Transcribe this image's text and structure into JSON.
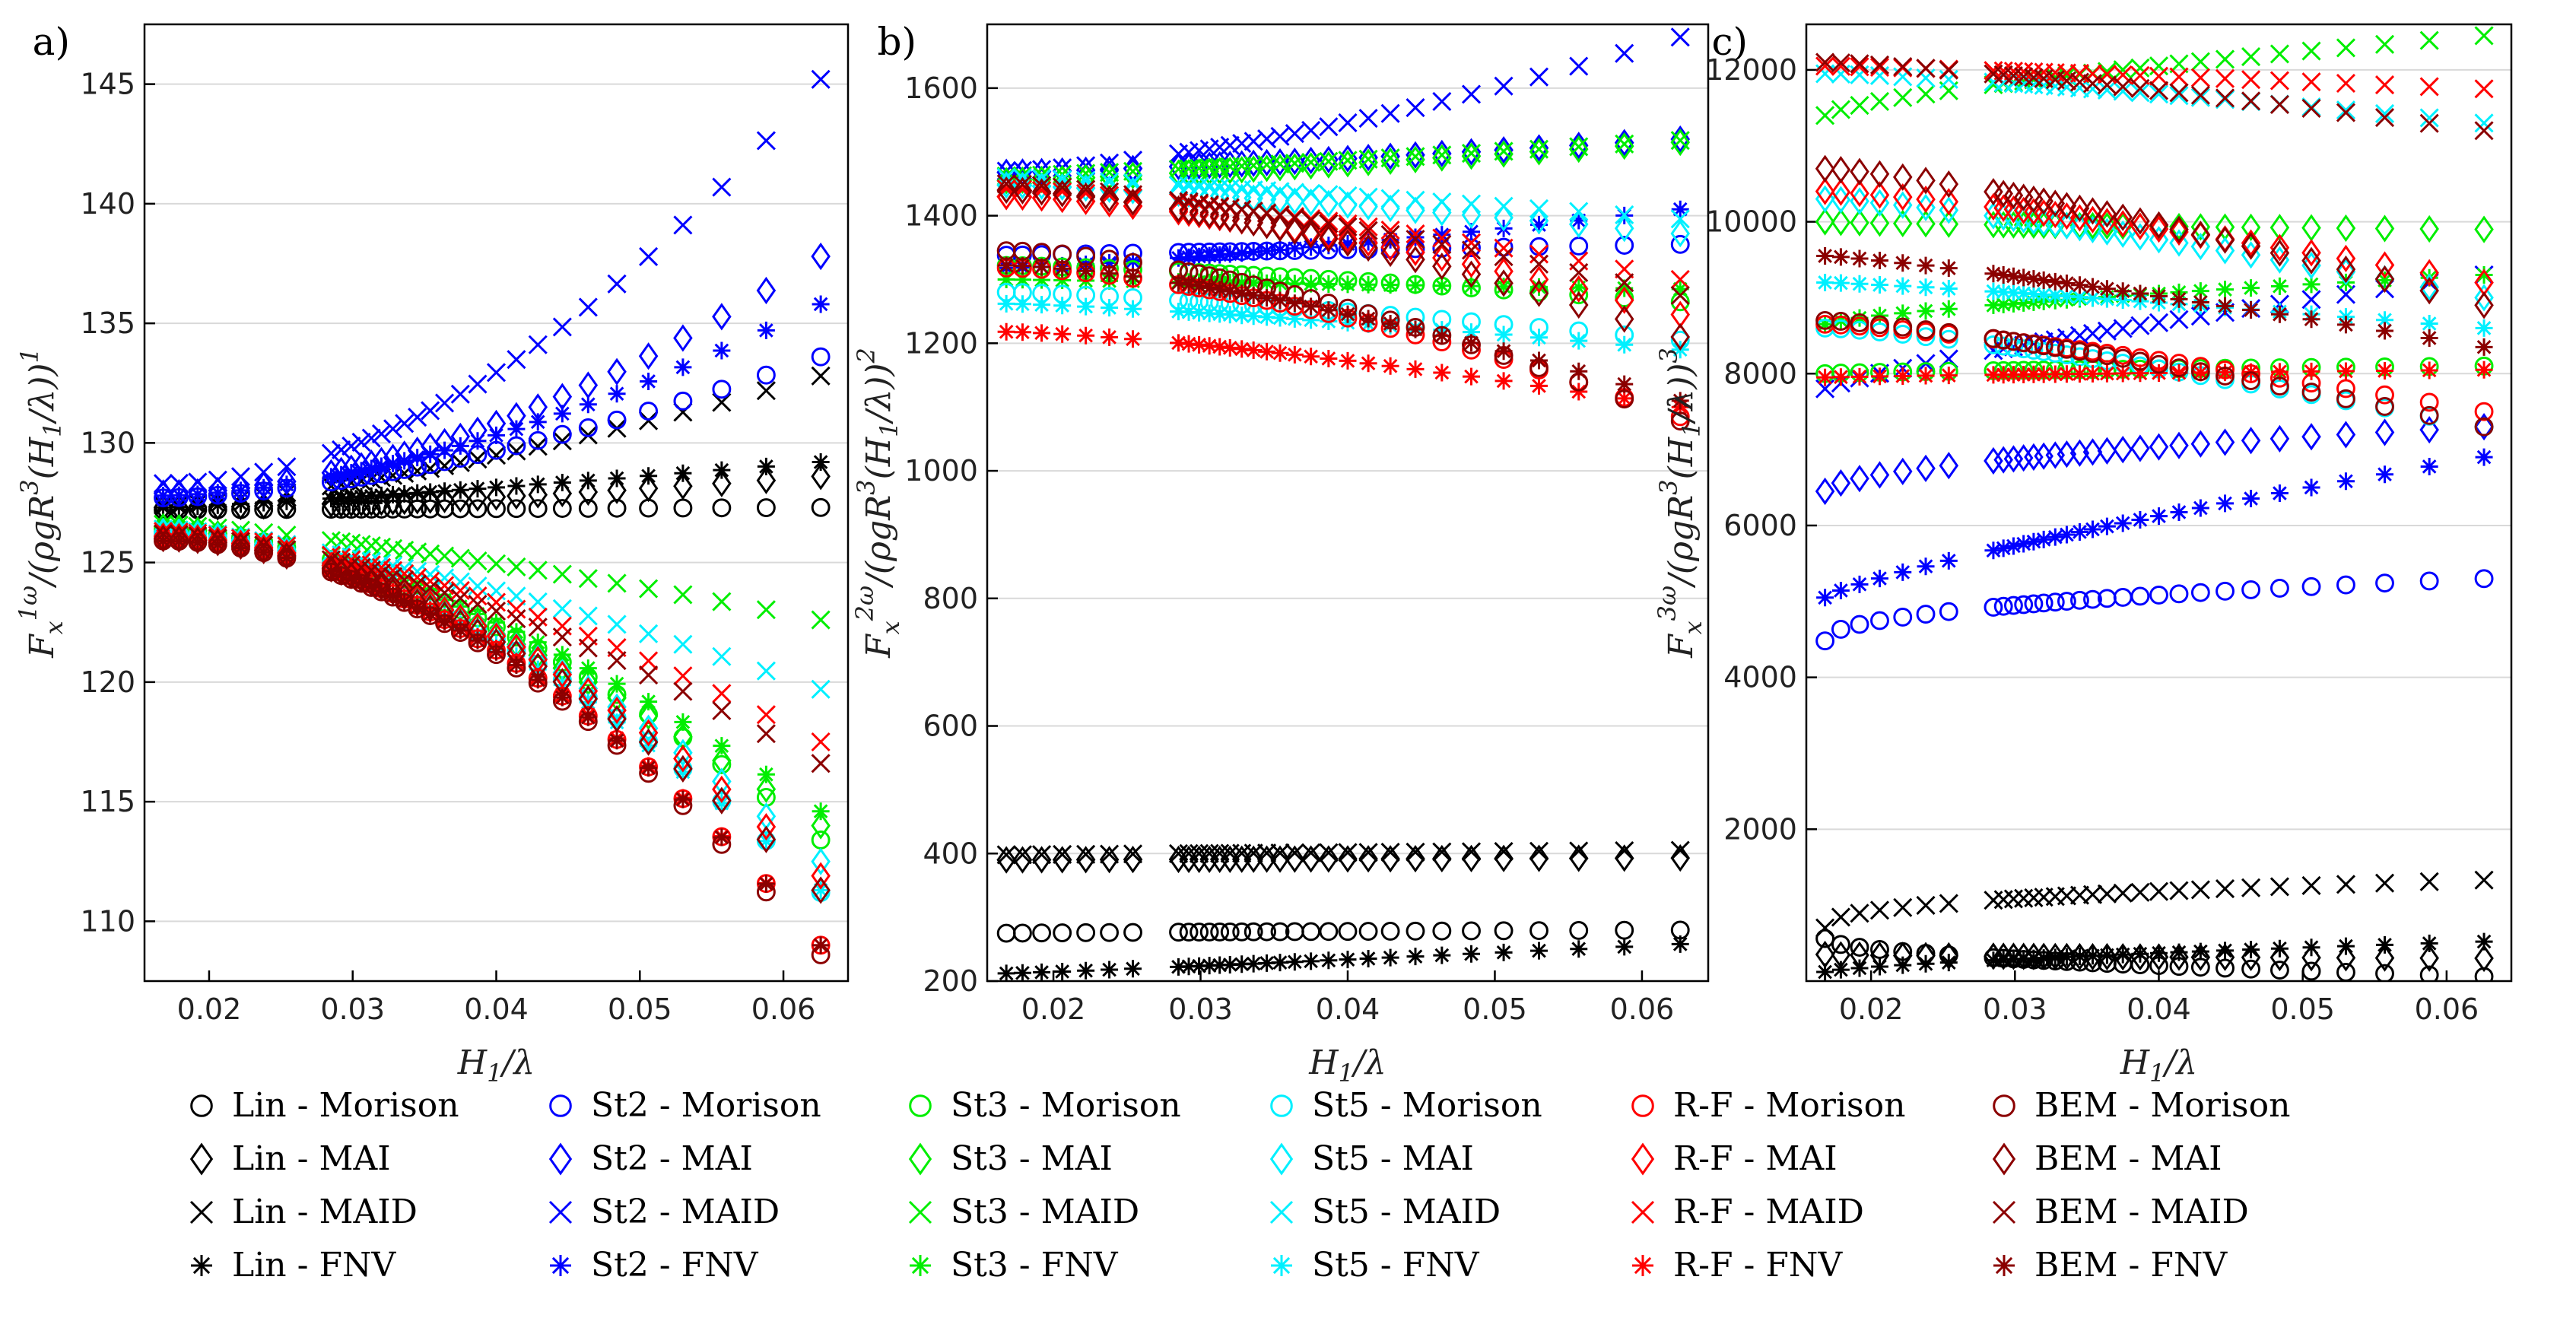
{
  "chart_data": [
    {
      "panel": "a)",
      "type": "scatter",
      "ylabel": "F_x^{1ω}/(ρgR^3(H_1/λ)^1)",
      "xlabel": "H_1/λ",
      "xlim": [
        0.0155,
        0.0645
      ],
      "ylim": [
        107.5,
        147.5
      ],
      "xticks": [
        0.02,
        0.03,
        0.04,
        0.05,
        0.06
      ],
      "xtick_labels": [
        "0.02",
        "0.03",
        "0.04",
        "0.05",
        "0.06"
      ],
      "yticks": [
        110,
        115,
        120,
        125,
        130,
        135,
        140,
        145
      ],
      "ytick_labels": [
        "110",
        "115",
        "120",
        "125",
        "130",
        "135",
        "140",
        "145"
      ],
      "series": [
        {
          "model": "Lin",
          "method": "Morison",
          "start": 127.2,
          "end": 127.3,
          "curve": 1.0
        },
        {
          "model": "Lin",
          "method": "MAI",
          "start": 127.3,
          "end": 128.6,
          "curve": 1.6
        },
        {
          "model": "Lin",
          "method": "MAID",
          "start": 127.4,
          "end": 132.8,
          "curve": 1.4
        },
        {
          "model": "Lin",
          "method": "FNV",
          "start": 127.3,
          "end": 129.2,
          "curve": 1.2
        },
        {
          "model": "St2",
          "method": "Morison",
          "start": 127.7,
          "end": 133.6,
          "curve": 1.6
        },
        {
          "model": "St2",
          "method": "MAI",
          "start": 127.9,
          "end": 137.8,
          "curve": 1.8
        },
        {
          "model": "St2",
          "method": "MAID",
          "start": 128.3,
          "end": 145.2,
          "curve": 1.9
        },
        {
          "model": "St2",
          "method": "FNV",
          "start": 127.8,
          "end": 135.8,
          "curve": 1.7
        },
        {
          "model": "St3",
          "method": "Morison",
          "start": 126.4,
          "end": 113.4,
          "curve": 1.7
        },
        {
          "model": "St3",
          "method": "MAI",
          "start": 126.5,
          "end": 114.0,
          "curve": 1.5
        },
        {
          "model": "St3",
          "method": "MAID",
          "start": 126.6,
          "end": 122.6,
          "curve": 1.3
        },
        {
          "model": "St3",
          "method": "FNV",
          "start": 126.5,
          "end": 114.6,
          "curve": 1.6
        },
        {
          "model": "St5",
          "method": "Morison",
          "start": 126.2,
          "end": 111.2,
          "curve": 1.8
        },
        {
          "model": "St5",
          "method": "MAI",
          "start": 126.3,
          "end": 112.5,
          "curve": 1.7
        },
        {
          "model": "St5",
          "method": "MAID",
          "start": 126.4,
          "end": 119.7,
          "curve": 1.4
        },
        {
          "model": "St5",
          "method": "FNV",
          "start": 126.3,
          "end": 111.3,
          "curve": 1.7
        },
        {
          "model": "R-F",
          "method": "Morison",
          "start": 126.0,
          "end": 109.0,
          "curve": 1.9
        },
        {
          "model": "R-F",
          "method": "MAI",
          "start": 126.1,
          "end": 111.9,
          "curve": 1.8
        },
        {
          "model": "R-F",
          "method": "MAID",
          "start": 126.3,
          "end": 117.5,
          "curve": 1.6
        },
        {
          "model": "R-F",
          "method": "FNV",
          "start": 126.1,
          "end": 109.0,
          "curve": 1.9
        },
        {
          "model": "BEM",
          "method": "Morison",
          "start": 125.9,
          "end": 108.6,
          "curve": 1.9
        },
        {
          "model": "BEM",
          "method": "MAI",
          "start": 126.0,
          "end": 111.3,
          "curve": 1.8
        },
        {
          "model": "BEM",
          "method": "MAID",
          "start": 126.2,
          "end": 116.6,
          "curve": 1.6
        },
        {
          "model": "BEM",
          "method": "FNV",
          "start": 125.9,
          "end": 109.0,
          "curve": 1.9
        }
      ]
    },
    {
      "panel": "b)",
      "type": "scatter",
      "ylabel": "F_x^{2ω}/(ρgR^3(H_1/λ)^2)",
      "xlabel": "H_1/λ",
      "xlim": [
        0.0155,
        0.0645
      ],
      "ylim": [
        200,
        1700
      ],
      "xticks": [
        0.02,
        0.03,
        0.04,
        0.05,
        0.06
      ],
      "xtick_labels": [
        "0.02",
        "0.03",
        "0.04",
        "0.05",
        "0.06"
      ],
      "yticks": [
        200,
        400,
        600,
        800,
        1000,
        1200,
        1400,
        1600
      ],
      "ytick_labels": [
        "200",
        "400",
        "600",
        "800",
        "1000",
        "1200",
        "1400",
        "1600"
      ],
      "series": [
        {
          "model": "Lin",
          "method": "Morison",
          "start": 275,
          "end": 280,
          "curve": 0.8
        },
        {
          "model": "Lin",
          "method": "MAI",
          "start": 390,
          "end": 393,
          "curve": 1.0
        },
        {
          "model": "Lin",
          "method": "MAID",
          "start": 398,
          "end": 405,
          "curve": 1.0
        },
        {
          "model": "Lin",
          "method": "FNV",
          "start": 212,
          "end": 258,
          "curve": 1.1
        },
        {
          "model": "St2",
          "method": "Morison",
          "start": 1338,
          "end": 1355,
          "curve": 1.0
        },
        {
          "model": "St2",
          "method": "MAI",
          "start": 1468,
          "end": 1520,
          "curve": 1.3
        },
        {
          "model": "St2",
          "method": "MAID",
          "start": 1470,
          "end": 1680,
          "curve": 1.5
        },
        {
          "model": "St2",
          "method": "FNV",
          "start": 1318,
          "end": 1410,
          "curve": 1.3
        },
        {
          "model": "St3",
          "method": "Morison",
          "start": 1322,
          "end": 1265,
          "curve": 1.3
        },
        {
          "model": "St3",
          "method": "MAI",
          "start": 1455,
          "end": 1515,
          "curve": 1.2
        },
        {
          "model": "St3",
          "method": "MAID",
          "start": 1462,
          "end": 1518,
          "curve": 1.2
        },
        {
          "model": "St3",
          "method": "FNV",
          "start": 1300,
          "end": 1285,
          "curve": 1.0
        },
        {
          "model": "St5",
          "method": "Morison",
          "start": 1280,
          "end": 1205,
          "curve": 1.3
        },
        {
          "model": "St5",
          "method": "MAI",
          "start": 1448,
          "end": 1372,
          "curve": 1.3
        },
        {
          "model": "St5",
          "method": "MAID",
          "start": 1460,
          "end": 1395,
          "curve": 1.2
        },
        {
          "model": "St5",
          "method": "FNV",
          "start": 1262,
          "end": 1190,
          "curve": 1.3
        },
        {
          "model": "R-F",
          "method": "Morison",
          "start": 1318,
          "end": 1085,
          "curve": 1.6
        },
        {
          "model": "R-F",
          "method": "MAI",
          "start": 1430,
          "end": 1245,
          "curve": 1.5
        },
        {
          "model": "R-F",
          "method": "MAID",
          "start": 1442,
          "end": 1300,
          "curve": 1.4
        },
        {
          "model": "R-F",
          "method": "FNV",
          "start": 1218,
          "end": 1100,
          "curve": 1.4
        },
        {
          "model": "BEM",
          "method": "Morison",
          "start": 1345,
          "end": 1078,
          "curve": 1.6
        },
        {
          "model": "BEM",
          "method": "MAI",
          "start": 1440,
          "end": 1210,
          "curve": 1.5
        },
        {
          "model": "BEM",
          "method": "MAID",
          "start": 1450,
          "end": 1275,
          "curve": 1.4
        },
        {
          "model": "BEM",
          "method": "FNV",
          "start": 1322,
          "end": 1110,
          "curve": 1.5
        }
      ]
    },
    {
      "panel": "c)",
      "type": "scatter",
      "ylabel": "F_x^{3ω}/(ρgR^3(H_1/λ)^3)",
      "xlabel": "H_1/λ",
      "xlim": [
        0.0155,
        0.0645
      ],
      "ylim": [
        0,
        12600
      ],
      "xticks": [
        0.02,
        0.03,
        0.04,
        0.05,
        0.06
      ],
      "xtick_labels": [
        "0.02",
        "0.03",
        "0.04",
        "0.05",
        "0.06"
      ],
      "yticks": [
        2000,
        4000,
        6000,
        8000,
        10000,
        12000
      ],
      "ytick_labels": [
        "2000",
        "4000",
        "6000",
        "8000",
        "10000",
        "12000"
      ],
      "series": [
        {
          "model": "Lin",
          "method": "Morison",
          "start": 560,
          "end": 60,
          "curve": 0.5
        },
        {
          "model": "Lin",
          "method": "MAI",
          "start": 350,
          "end": 300,
          "curve": 0.6
        },
        {
          "model": "Lin",
          "method": "MAID",
          "start": 700,
          "end": 1330,
          "curve": 0.4
        },
        {
          "model": "Lin",
          "method": "FNV",
          "start": 120,
          "end": 520,
          "curve": 0.7
        },
        {
          "model": "St2",
          "method": "Morison",
          "start": 4480,
          "end": 5300,
          "curve": 0.45
        },
        {
          "model": "St2",
          "method": "MAI",
          "start": 6450,
          "end": 7300,
          "curve": 0.55
        },
        {
          "model": "St2",
          "method": "MAID",
          "start": 7800,
          "end": 9300,
          "curve": 0.8
        },
        {
          "model": "St2",
          "method": "FNV",
          "start": 5050,
          "end": 6900,
          "curve": 0.8
        },
        {
          "model": "St3",
          "method": "Morison",
          "start": 8000,
          "end": 8100,
          "curve": 0.7
        },
        {
          "model": "St3",
          "method": "MAI",
          "start": 10000,
          "end": 9900,
          "curve": 0.7
        },
        {
          "model": "St3",
          "method": "MAID",
          "start": 11400,
          "end": 12450,
          "curve": 0.7
        },
        {
          "model": "St3",
          "method": "FNV",
          "start": 8650,
          "end": 9300,
          "curve": 0.7
        },
        {
          "model": "St5",
          "method": "Morison",
          "start": 8600,
          "end": 7300,
          "curve": 1.3
        },
        {
          "model": "St5",
          "method": "MAI",
          "start": 10300,
          "end": 9000,
          "curve": 1.3
        },
        {
          "model": "St5",
          "method": "MAID",
          "start": 11950,
          "end": 11300,
          "curve": 1.3
        },
        {
          "model": "St5",
          "method": "FNV",
          "start": 9200,
          "end": 8600,
          "curve": 1.2
        },
        {
          "model": "R-F",
          "method": "Morison",
          "start": 8650,
          "end": 7500,
          "curve": 1.3
        },
        {
          "model": "R-F",
          "method": "MAI",
          "start": 10400,
          "end": 9200,
          "curve": 1.3
        },
        {
          "model": "R-F",
          "method": "MAID",
          "start": 12050,
          "end": 11750,
          "curve": 1.2
        },
        {
          "model": "R-F",
          "method": "FNV",
          "start": 7950,
          "end": 8050,
          "curve": 0.8
        },
        {
          "model": "BEM",
          "method": "Morison",
          "start": 8700,
          "end": 7300,
          "curve": 1.3
        },
        {
          "model": "BEM",
          "method": "MAI",
          "start": 10700,
          "end": 8900,
          "curve": 1.3
        },
        {
          "model": "BEM",
          "method": "MAID",
          "start": 12100,
          "end": 11200,
          "curve": 1.3
        },
        {
          "model": "BEM",
          "method": "FNV",
          "start": 9550,
          "end": 8350,
          "curve": 1.2
        }
      ]
    }
  ],
  "x_samples": [
    0.0168,
    0.0179,
    0.0192,
    0.0206,
    0.0222,
    0.0238,
    0.0254,
    0.0285,
    0.0292,
    0.0299,
    0.0306,
    0.0313,
    0.032,
    0.0328,
    0.0336,
    0.0345,
    0.0354,
    0.0364,
    0.0375,
    0.0387,
    0.04,
    0.0414,
    0.0429,
    0.0446,
    0.0464,
    0.0484,
    0.0506,
    0.053,
    0.0557,
    0.0588,
    0.0626
  ],
  "x_samples_note": "",
  "legend": {
    "models": [
      {
        "name": "Lin",
        "color": "#000000"
      },
      {
        "name": "St2",
        "color": "#0000ff"
      },
      {
        "name": "St3",
        "color": "#00ee00"
      },
      {
        "name": "St5",
        "color": "#00f0ff"
      },
      {
        "name": "R-F",
        "color": "#ff0000"
      },
      {
        "name": "BEM",
        "color": "#8b0000"
      }
    ],
    "methods": [
      {
        "name": "Morison",
        "marker": "circle"
      },
      {
        "name": "MAI",
        "marker": "diamond"
      },
      {
        "name": "MAID",
        "marker": "x"
      },
      {
        "name": "FNV",
        "marker": "asterisk"
      }
    ],
    "entries": [
      [
        "Lin - Morison",
        "Lin - MAI",
        "Lin - MAID",
        "Lin - FNV"
      ],
      [
        "St2 - Morison",
        "St2 - MAI",
        "St2 - MAID",
        "St2 - FNV"
      ],
      [
        "St3 - Morison",
        "St3 - MAI",
        "St3 - MAID",
        "St3 - FNV"
      ],
      [
        "St5 - Morison",
        "St5 - MAI",
        "St5 - MAID",
        "St5 - FNV"
      ],
      [
        "R-F - Morison",
        "R-F - MAI",
        "R-F - MAID",
        "R-F - FNV"
      ],
      [
        "BEM - Morison",
        "BEM - MAI",
        "BEM - MAID",
        "BEM - FNV"
      ]
    ]
  }
}
